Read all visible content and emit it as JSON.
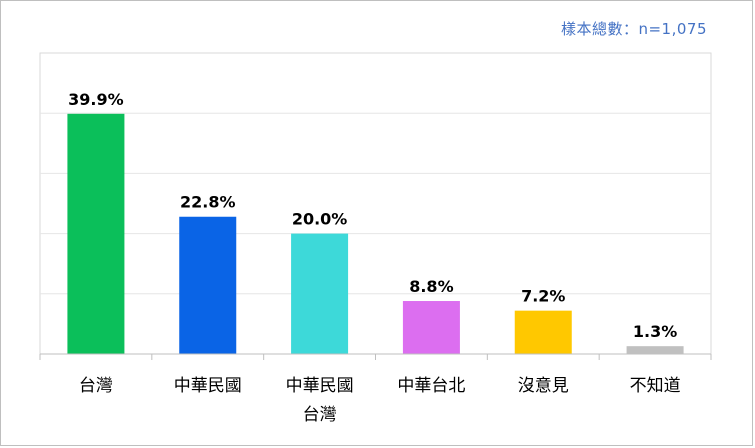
{
  "header": {
    "sample_size": "樣本總數：n=1,075"
  },
  "chart_data": {
    "type": "bar",
    "categories": [
      [
        "台灣"
      ],
      [
        "中華民國"
      ],
      [
        "中華民國",
        "台灣"
      ],
      [
        "中華台北"
      ],
      [
        "沒意見"
      ],
      [
        "不知道"
      ]
    ],
    "values": [
      39.9,
      22.8,
      20.0,
      8.8,
      7.2,
      1.3
    ],
    "value_labels": [
      "39.9%",
      "22.8%",
      "20.0%",
      "8.8%",
      "7.2%",
      "1.3%"
    ],
    "colors": [
      "#0bbf5a",
      "#0a64e6",
      "#3dd9d9",
      "#dc6ef0",
      "#ffc800",
      "#c0c0c0"
    ],
    "ylim": [
      0,
      50
    ],
    "grid": true,
    "title": "",
    "xlabel": "",
    "ylabel": ""
  }
}
